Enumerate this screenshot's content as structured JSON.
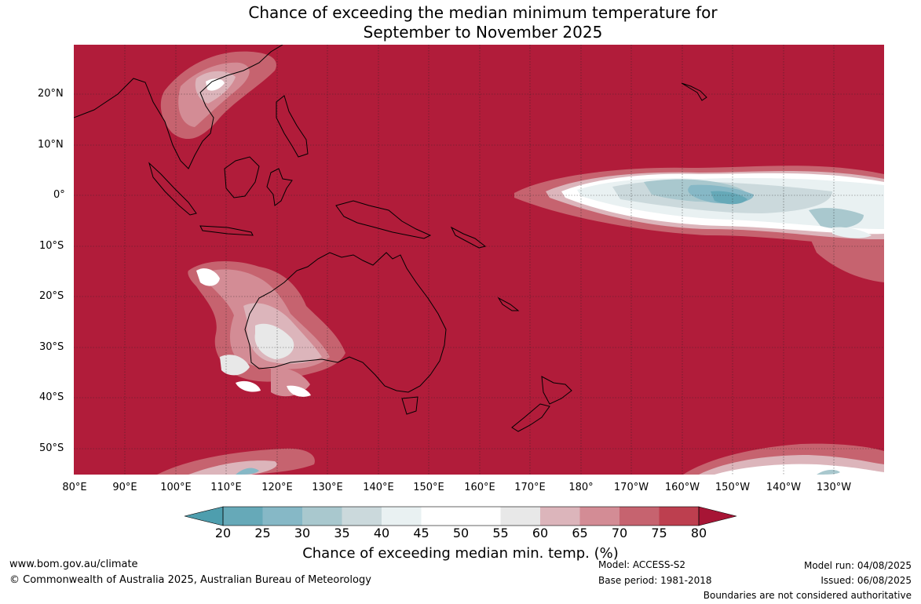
{
  "title": {
    "line1": "Chance of exceeding the median minimum temperature for",
    "line2": "September to November 2025"
  },
  "map": {
    "background_color": "#b11c3a",
    "latitude_labels": [
      "20°N",
      "10°N",
      "0°",
      "10°S",
      "20°S",
      "30°S",
      "40°S",
      "50°S"
    ],
    "longitude_labels": [
      "80°E",
      "90°E",
      "100°E",
      "110°E",
      "120°E",
      "130°E",
      "140°E",
      "150°E",
      "160°E",
      "170°E",
      "180°",
      "170°W",
      "160°W",
      "150°W",
      "140°W",
      "130°W"
    ]
  },
  "colorbar": {
    "ticks": [
      "20",
      "25",
      "30",
      "35",
      "40",
      "45",
      "50",
      "55",
      "60",
      "65",
      "70",
      "75",
      "80"
    ],
    "colors": [
      "#66a9b8",
      "#86b8c6",
      "#a9c8ce",
      "#cbd9dc",
      "#e9f1f2",
      "#ffffff",
      "#ffffff",
      "#e8e8e8",
      "#dcb5bb",
      "#d38c95",
      "#c6636f",
      "#bd3f4f"
    ],
    "under_color": "#4e9eae",
    "over_color": "#a71535",
    "label": "Chance of exceeding median min. temp. (%)"
  },
  "footer": {
    "website": "www.bom.gov.au/climate",
    "copyright": "© Commonwealth of Australia 2025, Australian Bureau of Meteorology",
    "model": "Model: ACCESS-S2",
    "base_period": "Base period: 1981-2018",
    "model_run": "Model run: 04/08/2025",
    "issued": "Issued: 06/08/2025",
    "disclaimer": "Boundaries are not considered authoritative"
  }
}
